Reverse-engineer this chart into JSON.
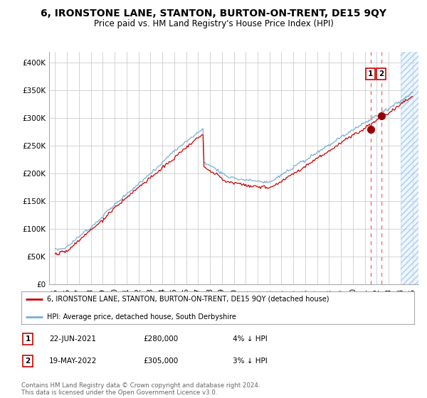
{
  "title": "6, IRONSTONE LANE, STANTON, BURTON-ON-TRENT, DE15 9QY",
  "subtitle": "Price paid vs. HM Land Registry's House Price Index (HPI)",
  "legend_line1": "6, IRONSTONE LANE, STANTON, BURTON-ON-TRENT, DE15 9QY (detached house)",
  "legend_line2": "HPI: Average price, detached house, South Derbyshire",
  "sale1_date": "22-JUN-2021",
  "sale1_price": "£280,000",
  "sale1_pct": "4% ↓ HPI",
  "sale1_year": 2021.47,
  "sale1_value": 280000,
  "sale2_date": "19-MAY-2022",
  "sale2_price": "£305,000",
  "sale2_pct": "3% ↓ HPI",
  "sale2_year": 2022.37,
  "sale2_value": 305000,
  "ylim": [
    0,
    420000
  ],
  "xlim_start": 1994.5,
  "xlim_end": 2025.5,
  "hatch_start": 2024.0,
  "red_line_color": "#cc0000",
  "blue_line_color": "#7aafd4",
  "dashed_line_color": "#e87070",
  "marker_color": "#990000",
  "footnote": "Contains HM Land Registry data © Crown copyright and database right 2024.\nThis data is licensed under the Open Government Licence v3.0.",
  "background_color": "#ffffff",
  "grid_color": "#cccccc",
  "title_fontsize": 10,
  "subtitle_fontsize": 8.5,
  "tick_fontsize": 7.5,
  "legend_fontsize": 7.0,
  "annot_fontsize": 7.5
}
